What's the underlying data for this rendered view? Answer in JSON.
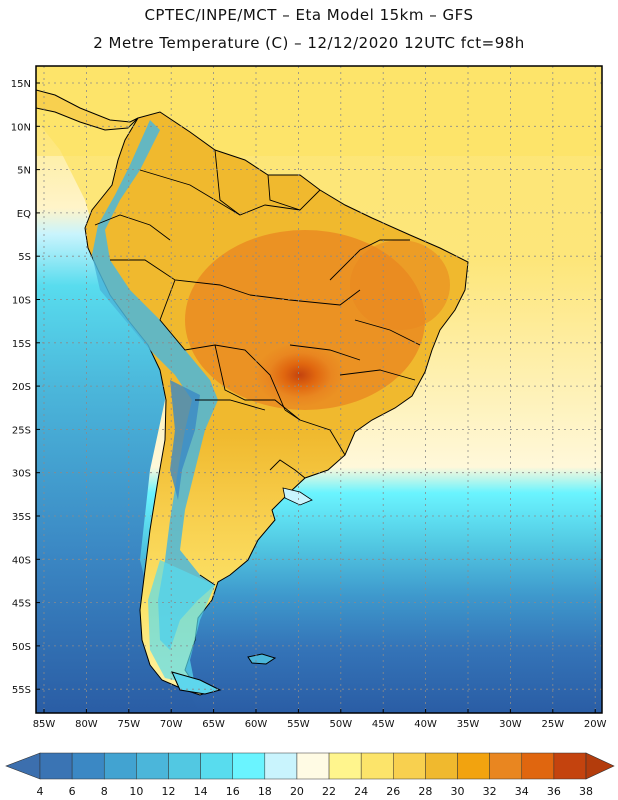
{
  "title_line1": "CPTEC/INPE/MCT –  Eta Model 15km – GFS",
  "title_line2": "2 Metre Temperature (C) – 12/12/2020 12UTC fct=98h",
  "lat_labels": [
    "15N",
    "10N",
    "5N",
    "EQ",
    "5S",
    "10S",
    "15S",
    "20S",
    "25S",
    "30S",
    "35S",
    "40S",
    "45S",
    "50S",
    "55S"
  ],
  "lon_labels": [
    "85W",
    "80W",
    "75W",
    "70W",
    "65W",
    "60W",
    "55W",
    "50W",
    "45W",
    "40W",
    "35W",
    "30W",
    "25W",
    "20W"
  ],
  "colorbar": {
    "labels": [
      "4",
      "6",
      "8",
      "10",
      "12",
      "14",
      "16",
      "18",
      "20",
      "22",
      "24",
      "26",
      "28",
      "30",
      "32",
      "34",
      "36",
      "38"
    ],
    "low_color": "#3c6fae",
    "high_color": "#b33c0c",
    "colors": [
      "#3a74b4",
      "#3b88c4",
      "#42a3d1",
      "#4bb6da",
      "#52c8e2",
      "#58dcee",
      "#6af4ff",
      "#c9f4fd",
      "#fffbe4",
      "#fff58d",
      "#fce46a",
      "#f8d04f",
      "#f0b92e",
      "#f2a30f",
      "#e98620",
      "#e0660f",
      "#c4430e"
    ]
  },
  "colors": {
    "ocean_deep": "#2a5da5",
    "ocean_mid": "#3e92c9",
    "ocean_light": "#5ed6ed",
    "ocean_warm": "#fce46a",
    "land_warm": "#f3c04e",
    "land_hot": "#e98620",
    "mountains": "#4bb6da"
  }
}
